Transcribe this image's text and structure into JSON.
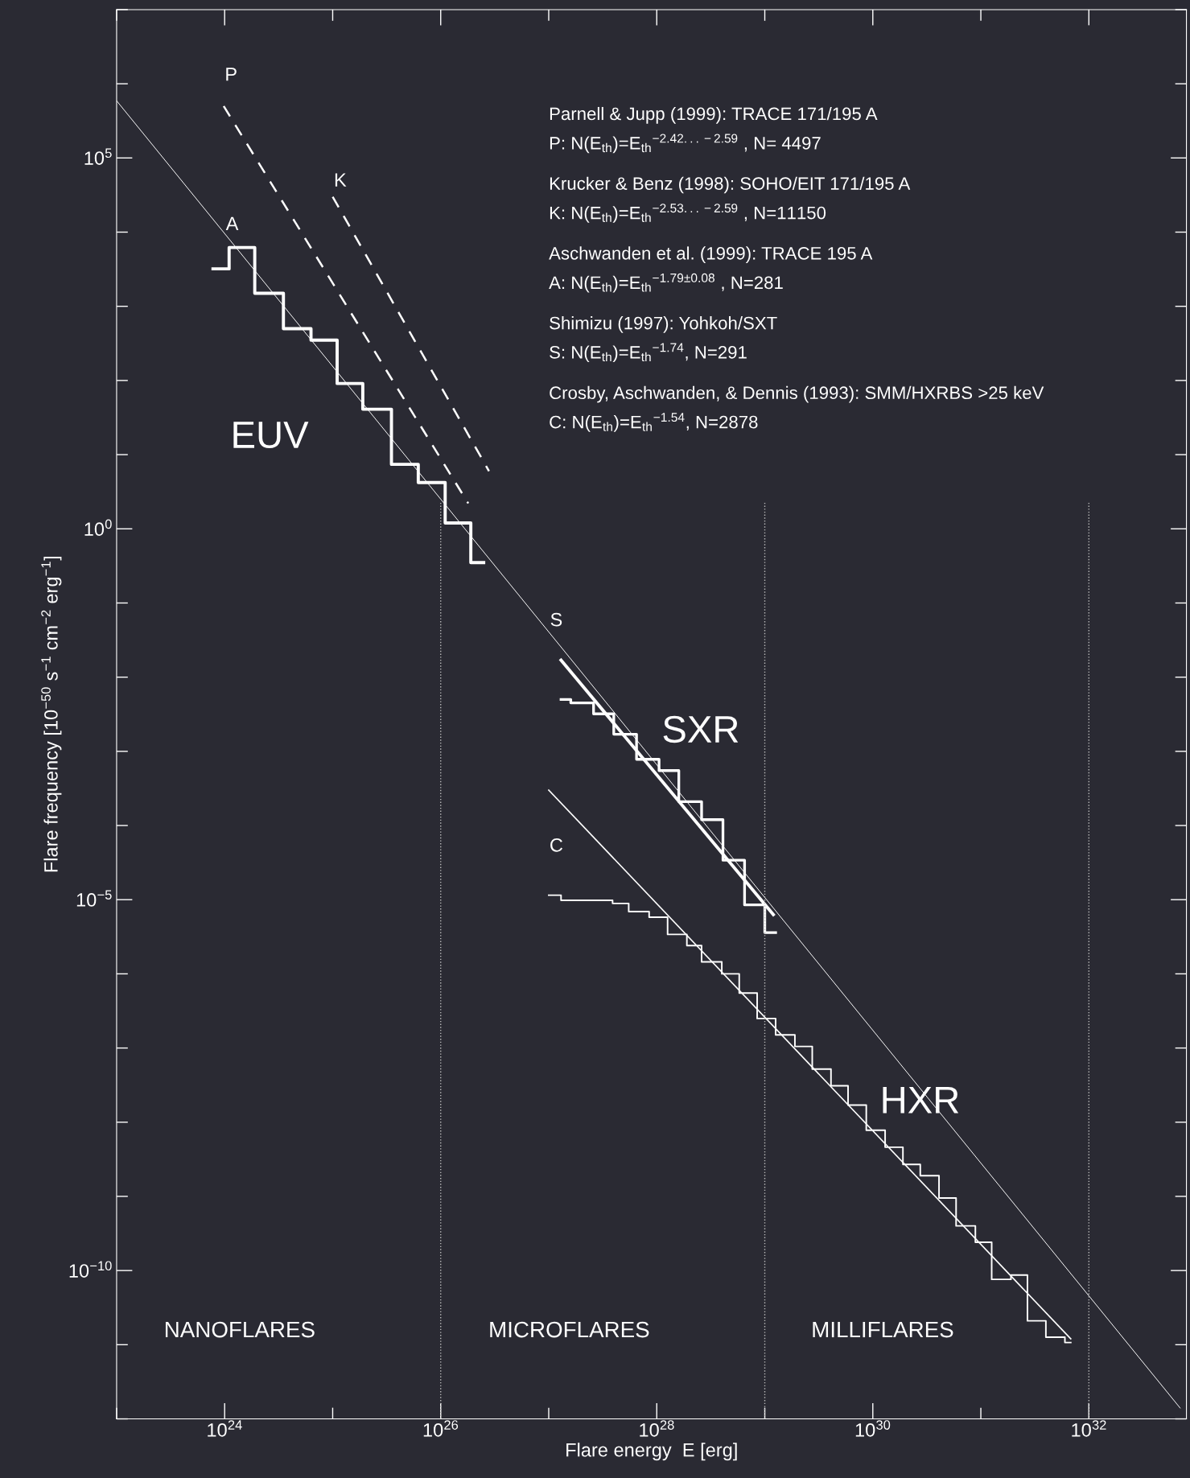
{
  "chart_data": {
    "type": "line",
    "xlabel": "Flare energy  E [erg]",
    "ylabel": "Flare frequency [10$^{−50}$ s$^{−1}$ cm$^{−2}$ erg$^{−1}$]",
    "log": "xy",
    "grid": false,
    "xlim": [
      1e+23,
      8e+32
    ],
    "ylim": [
      1e-12,
      10000000.0
    ],
    "xticks": [
      {
        "value": 1e+24,
        "label": "10$^{24}$"
      },
      {
        "value": 1e+26,
        "label": "10$^{26}$"
      },
      {
        "value": 1e+28,
        "label": "10$^{28}$"
      },
      {
        "value": 1e+30,
        "label": "10$^{30}$"
      },
      {
        "value": 1e+32,
        "label": "10$^{32}$"
      }
    ],
    "yticks": [
      {
        "value": 1e-10,
        "label": "10$^{−10}$"
      },
      {
        "value": 1e-05,
        "label": "10$^{−5}$"
      },
      {
        "value": 1,
        "label": "10$^{0}$"
      },
      {
        "value": 100000.0,
        "label": "10$^{5}$"
      }
    ],
    "series": [
      {
        "color": "#ffffff",
        "line_style": "solid",
        "x": [
          1e+23,
          7e+32
        ],
        "values": [
          590000.0,
          1.4e-12
        ]
      },
      {
        "color": "#ffffff",
        "line_style": "dashed",
        "x": [
          9.8e+23,
          1.8e+26
        ],
        "values": [
          500000.0,
          2.2
        ]
      },
      {
        "color": "#ffffff",
        "line_style": "dashed",
        "x": [
          1e+25,
          2.8e+26
        ],
        "values": [
          30000.0,
          6.0
        ]
      },
      {
        "type": "step",
        "color": "#ffffff",
        "line_style": "solid",
        "x": [
          7.8e+23,
          1.1e+24,
          1.9e+24,
          3.5e+24,
          6.3e+24,
          1.1e+25,
          1.9e+25,
          3.5e+25,
          6.2e+25,
          1.1e+26,
          1.9e+26,
          2.5e+26
        ],
        "values": [
          3200.0,
          6200.0,
          1500.0,
          500.0,
          350.0,
          91,
          41,
          7.4,
          4.2,
          1.2,
          0.35,
          0.35
        ]
      },
      {
        "color": "#ffffff",
        "line_style": "solid",
        "x": [
          1.3e+27,
          1.2e+29
        ],
        "values": [
          0.017,
          6.3e-06
        ]
      },
      {
        "type": "step",
        "color": "#ffffff",
        "line_style": "solid",
        "x": [
          1.3e+27,
          1.6e+27,
          2.6e+27,
          4e+27,
          6.5e+27,
          1.05e+28,
          1.6e+28,
          2.6e+28,
          4.1e+28,
          6.5e+28,
          1e+29,
          1.26e+29
        ],
        "values": [
          0.005,
          0.0045,
          0.0032,
          0.0017,
          0.00078,
          0.00055,
          0.00021,
          0.00012,
          3.4e-05,
          8.5e-06,
          3.6e-06,
          3.6e-06
        ]
      },
      {
        "color": "#ffffff",
        "line_style": "solid",
        "x": [
          1e+27,
          6.8e+31
        ],
        "values": [
          0.0003,
          1.2e-11
        ]
      },
      {
        "type": "step",
        "color": "#ffffff",
        "line_style": "solid",
        "x": [
          1e+27,
          1.3e+27,
          3.9e+27,
          5.5e+27,
          8.5e+27,
          1.26e+28,
          1.9e+28,
          2.6e+28,
          4e+28,
          5.8e+28,
          8.5e+28,
          1.26e+29,
          1.9e+29,
          2.75e+29,
          4.1e+29,
          5.9e+29,
          8.7e+29,
          1.3e+30,
          1.9e+30,
          2.75e+30,
          4.1e+30,
          5.9e+30,
          8.9e+30,
          1.26e+31,
          1.9e+31,
          2.7e+31,
          4e+31,
          6e+31,
          6.8e+31
        ],
        "values": [
          1.15e-05,
          9.8e-06,
          8.9e-06,
          6.9e-06,
          5.8e-06,
          3.4e-06,
          2.4e-06,
          1.45e-06,
          1e-06,
          5.5e-07,
          2.5e-07,
          1.5e-07,
          1.05e-07,
          5.2e-08,
          3.1e-08,
          1.7e-08,
          7.8e-09,
          4.6e-09,
          2.7e-09,
          1.9e-09,
          9.5e-10,
          4e-10,
          2.4e-10,
          7.6e-11,
          8.7e-11,
          2.1e-11,
          1.26e-11,
          1.07e-11,
          1.07e-11
        ]
      }
    ],
    "ref_lines": [
      {
        "axis": "x",
        "value": 1e+26,
        "color": "#bbbbbb",
        "line_style": "dotted"
      },
      {
        "axis": "x",
        "value": 1e+29,
        "color": "#bbbbbb",
        "line_style": "dotted"
      },
      {
        "axis": "x",
        "value": 1e+32,
        "color": "#bbbbbb",
        "line_style": "dotted"
      }
    ],
    "annotations": [
      "P",
      "K",
      "A",
      "S",
      "C",
      "EUV",
      "SXR",
      "HXR",
      "NANOFLARES",
      "MICROFLARES",
      "MILLIFLARES",
      "Parnell & Jupp (1999): TRACE 171/195 A",
      "P: N(E$_{th}$)=E$_{th}$$^{−2.42...−2.59}$ , N= 4497",
      "Krucker & Benz (1998): SOHO/EIT 171/195 A",
      "K: N(E$_{th}$)=E$_{th}$$^{−2.53...−2.59}$ , N=11150",
      "Aschwanden et al. (1999): TRACE 195 A",
      "A: N(E$_{th}$)=E$_{th}$$^{−1.79±0.08}$ , N=281",
      "Shimizu (1997): Yohkoh/SXT",
      "S: N(E$_{th}$)=E$_{th}$$^{−1.74}$, N=291",
      "Crosby, Aschwanden, & Dennis (1993): SMM/HXRBS >25 keV",
      "C: N(E$_{th}$)=E$_{th}$$^{−1.54}$, N=2878"
    ]
  }
}
